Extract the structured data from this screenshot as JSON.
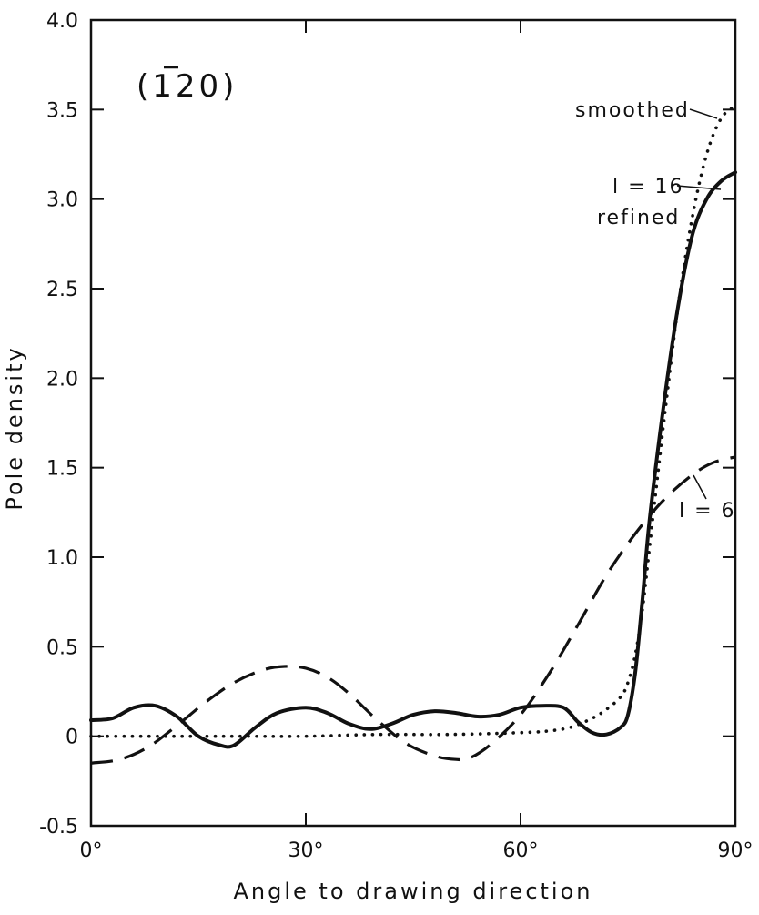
{
  "chart_data": {
    "type": "line",
    "title": "",
    "panel_label": "(ī20)",
    "panel_label_parts": {
      "open": "(",
      "digit_bar": "1",
      "rest": "20)"
    },
    "xlabel": "Angle to drawing direction",
    "ylabel": "Pole density",
    "xlim": [
      0,
      90
    ],
    "ylim": [
      -0.5,
      4.0
    ],
    "x_ticks": [
      0,
      30,
      60,
      90
    ],
    "x_tick_labels": [
      "0°",
      "30°",
      "60°",
      "90°"
    ],
    "y_ticks": [
      -0.5,
      0,
      0.5,
      1.0,
      1.5,
      2.0,
      2.5,
      3.0,
      3.5,
      4.0
    ],
    "y_tick_labels": [
      "-0.5",
      "0",
      "0.5",
      "1.0",
      "1.5",
      "2.0",
      "2.5",
      "3.0",
      "3.5",
      "4.0"
    ],
    "grid": false,
    "series": [
      {
        "name": "l = 16 refined",
        "style": "solid",
        "x": [
          0,
          3,
          6,
          9,
          12,
          15,
          18,
          20,
          23,
          26,
          30,
          33,
          36,
          39,
          42,
          45,
          48,
          51,
          54,
          57,
          60,
          63,
          66,
          68,
          70,
          72,
          74,
          75,
          76,
          77,
          78,
          80,
          82,
          84,
          86,
          88,
          90
        ],
        "y": [
          0.09,
          0.1,
          0.16,
          0.17,
          0.11,
          0.0,
          -0.05,
          -0.05,
          0.05,
          0.13,
          0.16,
          0.13,
          0.07,
          0.04,
          0.07,
          0.12,
          0.14,
          0.13,
          0.11,
          0.12,
          0.16,
          0.17,
          0.16,
          0.08,
          0.02,
          0.01,
          0.05,
          0.12,
          0.35,
          0.75,
          1.2,
          1.85,
          2.4,
          2.8,
          3.0,
          3.1,
          3.15
        ]
      },
      {
        "name": "l = 6",
        "style": "dashed",
        "x": [
          0,
          4,
          8,
          12,
          16,
          20,
          24,
          27,
          30,
          33,
          36,
          40,
          44,
          48,
          51,
          53,
          56,
          60,
          64,
          68,
          72,
          76,
          80,
          84,
          87,
          90
        ],
        "y": [
          -0.15,
          -0.13,
          -0.06,
          0.06,
          0.19,
          0.3,
          0.37,
          0.39,
          0.38,
          0.33,
          0.24,
          0.09,
          -0.04,
          -0.11,
          -0.13,
          -0.12,
          -0.04,
          0.12,
          0.35,
          0.62,
          0.9,
          1.13,
          1.32,
          1.46,
          1.53,
          1.56
        ]
      },
      {
        "name": "smoothed",
        "style": "dotted",
        "x": [
          0,
          10,
          20,
          30,
          40,
          50,
          60,
          64,
          67,
          70,
          72,
          74,
          75,
          76,
          77,
          78,
          80,
          82,
          84,
          86,
          88,
          90
        ],
        "y": [
          0.0,
          0.0,
          0.0,
          0.0,
          0.01,
          0.01,
          0.02,
          0.03,
          0.05,
          0.1,
          0.15,
          0.22,
          0.3,
          0.45,
          0.7,
          1.05,
          1.75,
          2.4,
          2.9,
          3.25,
          3.45,
          3.52
        ]
      }
    ],
    "annotations": [
      {
        "text": "smoothed",
        "series": "smoothed"
      },
      {
        "text_line1": "l = 16",
        "text_line2": "refined",
        "series": "l = 16 refined"
      },
      {
        "text": "l = 6",
        "series": "l = 6"
      }
    ]
  }
}
